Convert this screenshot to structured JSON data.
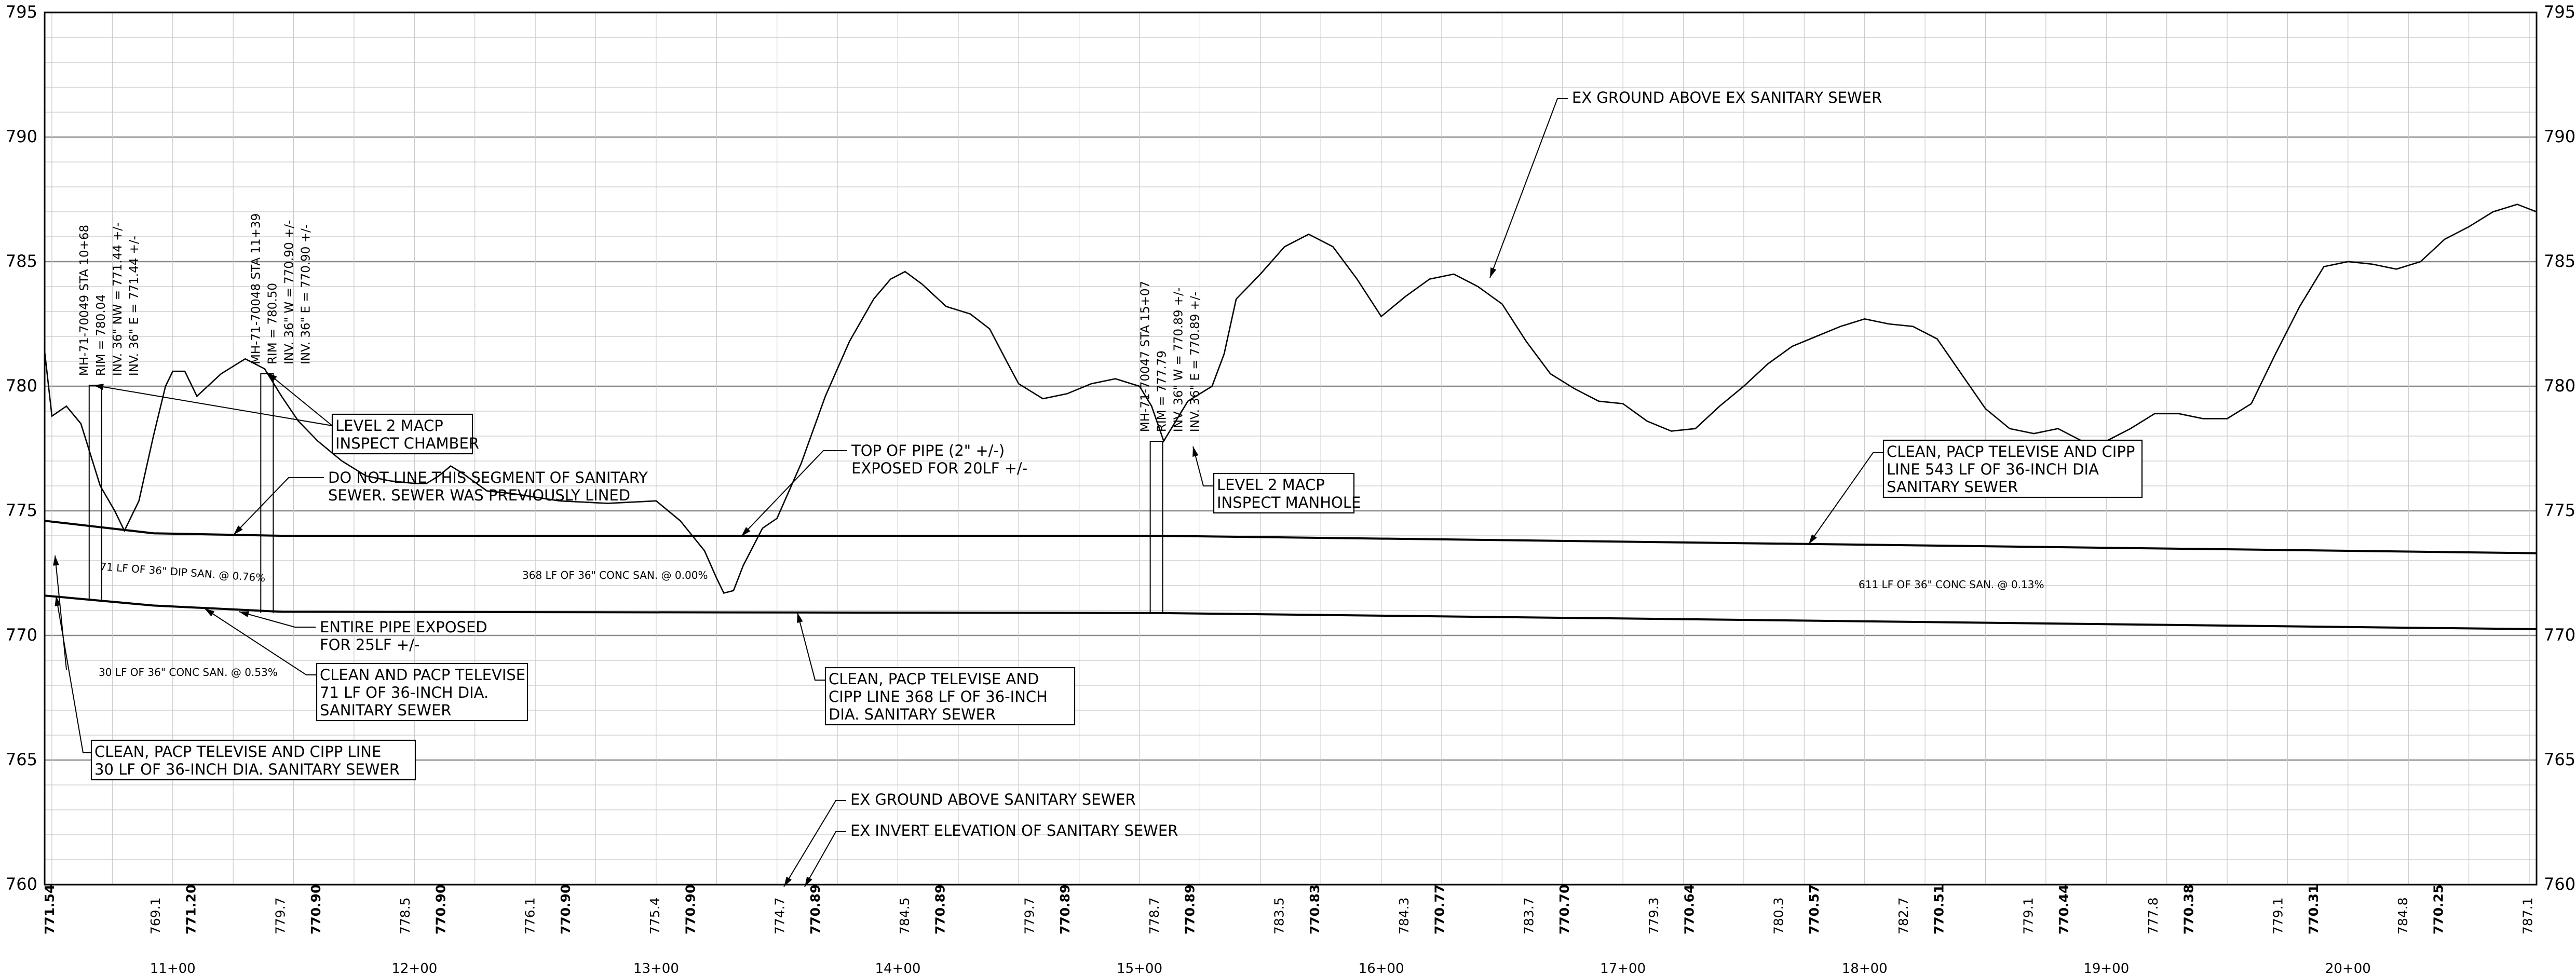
{
  "y_axis_labels": [
    "795",
    "790",
    "785",
    "780",
    "775",
    "770",
    "765",
    "760"
  ],
  "station_labels": [
    "11+00",
    "12+00",
    "13+00",
    "14+00",
    "15+00",
    "16+00",
    "17+00",
    "18+00",
    "19+00",
    "20+00"
  ],
  "ground_elevations": [
    "769.1",
    "779.7",
    "778.5",
    "776.1",
    "775.4",
    "774.7",
    "784.5",
    "779.7",
    "778.7",
    "783.5",
    "784.3",
    "783.7",
    "779.3",
    "780.3",
    "782.7",
    "779.1",
    "777.8",
    "779.1",
    "784.8",
    "787.1"
  ],
  "invert_elevations": [
    "771.54",
    "771.20",
    "770.90",
    "770.90",
    "770.90",
    "770.90",
    "770.89",
    "770.89",
    "770.89",
    "770.89",
    "770.83",
    "770.77",
    "770.70",
    "770.64",
    "770.57",
    "770.51",
    "770.44",
    "770.38",
    "770.31",
    "770.25"
  ],
  "manholes": [
    {
      "lines": [
        "MH-71-70049 STA 10+68",
        "RIM = 780.04",
        "INV. 36\" NW = 771.44 +/-",
        "INV. 36\" E = 771.44 +/-"
      ]
    },
    {
      "lines": [
        "MH-71-70048 STA 11+39",
        "RIM = 780.50",
        "INV. 36\" W = 770.90 +/-",
        "INV. 36\" E = 770.90 +/-"
      ]
    },
    {
      "lines": [
        "MH-71-70047 STA 15+07",
        "RIM = 777.79",
        "INV. 36\" W = 770.89 +/-",
        "INV. 36\" E = 770.89 +/-"
      ]
    }
  ],
  "pipe_labels": [
    "30 LF OF 36\" CONC SAN. @ 0.53%",
    "71 LF OF 36\" DIP SAN. @ 0.76%",
    "368 LF OF 36\" CONC SAN. @ 0.00%",
    "611 LF OF 36\" CONC SAN. @ 0.13%"
  ],
  "notes": {
    "level2_chamber": [
      "LEVEL 2 MACP",
      "INSPECT CHAMBER"
    ],
    "do_not_line": [
      "DO NOT LINE THIS SEGMENT OF SANITARY",
      "SEWER. SEWER WAS PREVIOUSLY LINED"
    ],
    "top_of_pipe": [
      "TOP OF PIPE (2\" +/-)",
      "EXPOSED FOR 20LF +/-"
    ],
    "level2_manhole": [
      "LEVEL 2 MACP",
      "INSPECT MANHOLE"
    ],
    "ex_ground_top": "EX GROUND ABOVE EX SANITARY SEWER",
    "clean_543": [
      "CLEAN, PACP TELEVISE AND CIPP",
      "LINE 543 LF OF 36-INCH DIA",
      "SANITARY SEWER"
    ],
    "entire_pipe": [
      "ENTIRE PIPE EXPOSED",
      "FOR 25LF +/-"
    ],
    "clean_71": [
      "CLEAN AND PACP TELEVISE",
      "71 LF OF 36-INCH DIA.",
      "SANITARY SEWER"
    ],
    "clean_368": [
      "CLEAN, PACP TELEVISE AND",
      "CIPP LINE 368 LF OF 36-INCH",
      "DIA. SANITARY SEWER"
    ],
    "clean_30": [
      "CLEAN, PACP TELEVISE AND CIPP LINE",
      "30 LF OF 36-INCH DIA. SANITARY SEWER"
    ],
    "legend_ground": "EX GROUND ABOVE SANITARY SEWER",
    "legend_invert": "EX INVERT ELEVATION OF SANITARY SEWER"
  },
  "profile": {
    "ground": [
      [
        10.47,
        781.4
      ],
      [
        10.5,
        778.8
      ],
      [
        10.56,
        779.2
      ],
      [
        10.62,
        778.5
      ],
      [
        10.7,
        776.0
      ],
      [
        10.76,
        775.0
      ],
      [
        10.8,
        774.2
      ],
      [
        10.86,
        775.4
      ],
      [
        10.92,
        778.0
      ],
      [
        10.97,
        780.0
      ],
      [
        11.0,
        780.6
      ],
      [
        11.05,
        780.6
      ],
      [
        11.1,
        779.6
      ],
      [
        11.2,
        780.5
      ],
      [
        11.3,
        781.1
      ],
      [
        11.38,
        780.7
      ],
      [
        11.45,
        779.6
      ],
      [
        11.52,
        778.6
      ],
      [
        11.6,
        777.8
      ],
      [
        11.7,
        777.0
      ],
      [
        11.8,
        776.4
      ],
      [
        11.9,
        776.2
      ],
      [
        12.0,
        776.1
      ],
      [
        12.05,
        776.1
      ],
      [
        12.1,
        776.4
      ],
      [
        12.15,
        776.8
      ],
      [
        12.2,
        776.5
      ],
      [
        12.3,
        775.8
      ],
      [
        12.4,
        775.7
      ],
      [
        12.6,
        775.4
      ],
      [
        12.8,
        775.3
      ],
      [
        13.0,
        775.4
      ],
      [
        13.1,
        774.6
      ],
      [
        13.2,
        773.4
      ],
      [
        13.25,
        772.3
      ],
      [
        13.28,
        771.7
      ],
      [
        13.32,
        771.8
      ],
      [
        13.36,
        772.8
      ],
      [
        13.44,
        774.3
      ],
      [
        13.5,
        774.7
      ],
      [
        13.6,
        776.9
      ],
      [
        13.7,
        779.6
      ],
      [
        13.8,
        781.8
      ],
      [
        13.9,
        783.5
      ],
      [
        13.97,
        784.3
      ],
      [
        14.03,
        784.6
      ],
      [
        14.1,
        784.1
      ],
      [
        14.2,
        783.2
      ],
      [
        14.3,
        782.9
      ],
      [
        14.38,
        782.3
      ],
      [
        14.45,
        781.0
      ],
      [
        14.5,
        780.1
      ],
      [
        14.6,
        779.5
      ],
      [
        14.7,
        779.7
      ],
      [
        14.8,
        780.1
      ],
      [
        14.9,
        780.3
      ],
      [
        15.0,
        780.0
      ],
      [
        15.05,
        779.2
      ],
      [
        15.1,
        777.8
      ],
      [
        15.2,
        779.4
      ],
      [
        15.3,
        780.0
      ],
      [
        15.35,
        781.3
      ],
      [
        15.4,
        783.5
      ],
      [
        15.5,
        784.5
      ],
      [
        15.6,
        785.6
      ],
      [
        15.7,
        786.1
      ],
      [
        15.8,
        785.6
      ],
      [
        15.9,
        784.3
      ],
      [
        16.0,
        782.8
      ],
      [
        16.1,
        783.6
      ],
      [
        16.2,
        784.3
      ],
      [
        16.3,
        784.5
      ],
      [
        16.4,
        784.0
      ],
      [
        16.5,
        783.3
      ],
      [
        16.6,
        781.8
      ],
      [
        16.7,
        780.5
      ],
      [
        16.8,
        779.9
      ],
      [
        16.9,
        779.4
      ],
      [
        17.0,
        779.3
      ],
      [
        17.1,
        778.6
      ],
      [
        17.2,
        778.2
      ],
      [
        17.3,
        778.3
      ],
      [
        17.4,
        779.2
      ],
      [
        17.5,
        780.0
      ],
      [
        17.6,
        780.9
      ],
      [
        17.7,
        781.6
      ],
      [
        17.8,
        782.0
      ],
      [
        17.9,
        782.4
      ],
      [
        18.0,
        782.7
      ],
      [
        18.1,
        782.5
      ],
      [
        18.2,
        782.4
      ],
      [
        18.3,
        781.9
      ],
      [
        18.4,
        780.5
      ],
      [
        18.5,
        779.1
      ],
      [
        18.6,
        778.3
      ],
      [
        18.7,
        778.1
      ],
      [
        18.8,
        778.3
      ],
      [
        18.9,
        777.8
      ],
      [
        19.0,
        777.8
      ],
      [
        19.1,
        778.3
      ],
      [
        19.2,
        778.9
      ],
      [
        19.3,
        778.9
      ],
      [
        19.4,
        778.7
      ],
      [
        19.5,
        778.7
      ],
      [
        19.6,
        779.3
      ],
      [
        19.7,
        781.3
      ],
      [
        19.8,
        783.2
      ],
      [
        19.9,
        784.8
      ],
      [
        20.0,
        785.0
      ],
      [
        20.1,
        784.9
      ],
      [
        20.2,
        784.7
      ],
      [
        20.3,
        785.0
      ],
      [
        20.4,
        785.9
      ],
      [
        20.5,
        786.4
      ],
      [
        20.6,
        787.0
      ],
      [
        20.7,
        787.3
      ],
      [
        20.78,
        787.0
      ]
    ],
    "pipe_top": [
      [
        10.47,
        774.6
      ],
      [
        10.92,
        774.1
      ],
      [
        11.45,
        774.0
      ],
      [
        15.07,
        774.0
      ],
      [
        20.78,
        773.3
      ]
    ],
    "pipe_invert": [
      [
        10.47,
        771.6
      ],
      [
        10.92,
        771.2
      ],
      [
        11.45,
        770.95
      ],
      [
        15.07,
        770.9
      ],
      [
        20.78,
        770.25
      ]
    ]
  }
}
